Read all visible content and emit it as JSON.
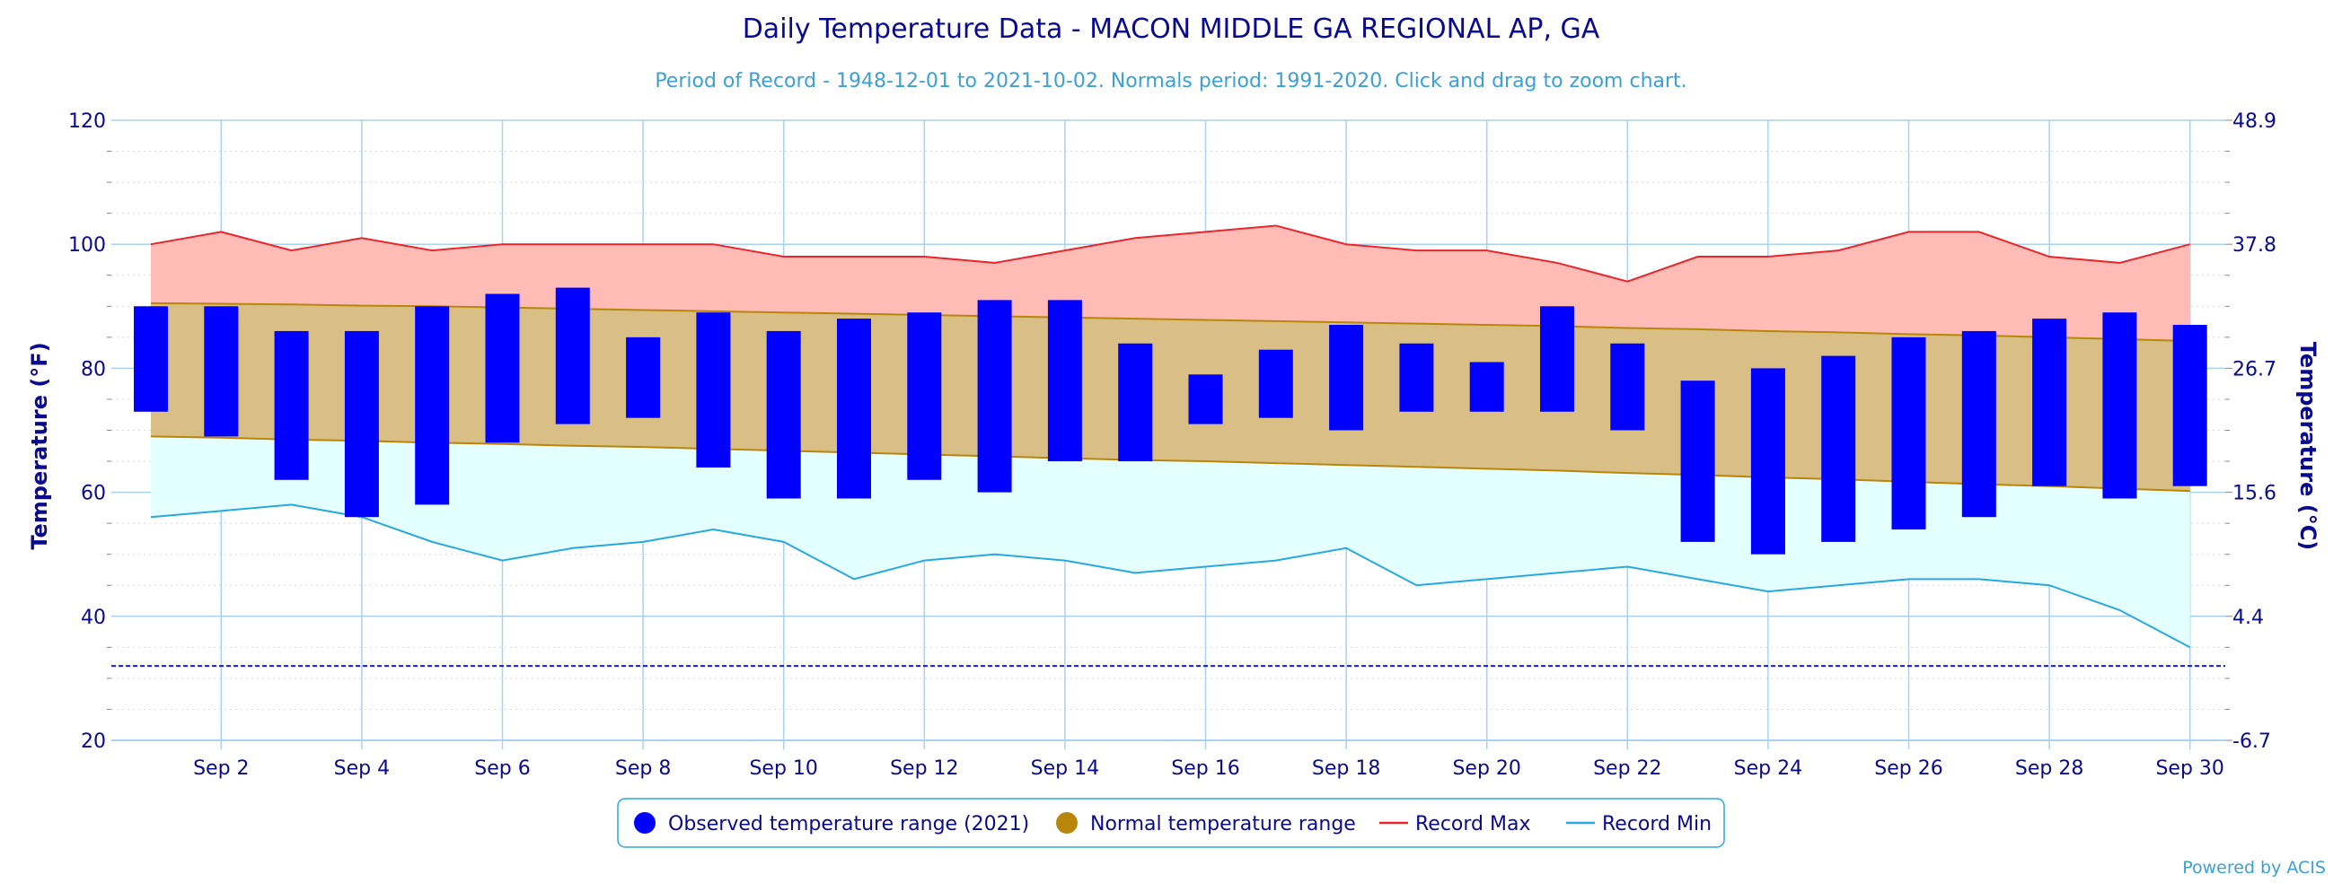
{
  "colors": {
    "observed": "#0000ff",
    "normal_fill": "#d9bf85",
    "normal_line": "#b8860b",
    "record_max_line": "#e8262b",
    "record_max_fill": "#ffbcb7",
    "record_min_line": "#29a8e0",
    "record_min_fill": "#e4ffff",
    "grid": "#a9d2f0",
    "freeze_line": "#1b1bd1",
    "text": "#0a0a8c",
    "subtitle": "#3aa0d8"
  },
  "chart_data": {
    "type": "bar",
    "title": "Daily Temperature Data - MACON MIDDLE GA REGIONAL AP, GA",
    "subtitle": "Period of Record - 1948-12-01 to 2021-10-02. Normals period: 1991-2020. Click and drag to zoom chart.",
    "ylabel_left": "Temperature (°F)",
    "ylabel_right": "Temperature (°C)",
    "ylim": [
      20,
      120
    ],
    "y_ticks": [
      "20",
      "40",
      "60",
      "80",
      "100",
      "120"
    ],
    "y_ticks_right": [
      "-6.7",
      "4.4",
      "15.6",
      "26.7",
      "37.8",
      "48.9"
    ],
    "x_tick_labels": [
      "Sep 2",
      "Sep 4",
      "Sep 6",
      "Sep 8",
      "Sep 10",
      "Sep 12",
      "Sep 14",
      "Sep 16",
      "Sep 18",
      "Sep 20",
      "Sep 22",
      "Sep 24",
      "Sep 26",
      "Sep 28",
      "Sep 30"
    ],
    "x_tick_days": [
      2,
      4,
      6,
      8,
      10,
      12,
      14,
      16,
      18,
      20,
      22,
      24,
      26,
      28,
      30
    ],
    "days": [
      1,
      2,
      3,
      4,
      5,
      6,
      7,
      8,
      9,
      10,
      11,
      12,
      13,
      14,
      15,
      16,
      17,
      18,
      19,
      20,
      21,
      22,
      23,
      24,
      25,
      26,
      27,
      28,
      29,
      30
    ],
    "observed_high": [
      90,
      90,
      86,
      86,
      90,
      92,
      93,
      85,
      89,
      86,
      88,
      89,
      91,
      91,
      84,
      79,
      83,
      87,
      84,
      81,
      90,
      84,
      78,
      80,
      82,
      85,
      86,
      88,
      89,
      87
    ],
    "observed_low": [
      73,
      69,
      62,
      56,
      58,
      68,
      71,
      72,
      64,
      59,
      59,
      62,
      60,
      65,
      65,
      71,
      72,
      70,
      73,
      73,
      73,
      70,
      52,
      50,
      52,
      54,
      56,
      61,
      59,
      61
    ],
    "normal_high": [
      90.5,
      90.4,
      90.3,
      90.1,
      90.0,
      89.8,
      89.6,
      89.4,
      89.2,
      89.0,
      88.8,
      88.6,
      88.4,
      88.2,
      88.0,
      87.8,
      87.6,
      87.4,
      87.2,
      87.0,
      86.8,
      86.5,
      86.3,
      86.0,
      85.8,
      85.5,
      85.3,
      85.0,
      84.7,
      84.4
    ],
    "normal_low": [
      69.0,
      68.8,
      68.5,
      68.3,
      68.0,
      67.8,
      67.5,
      67.3,
      67.0,
      66.7,
      66.4,
      66.1,
      65.8,
      65.5,
      65.2,
      65.0,
      64.7,
      64.4,
      64.1,
      63.8,
      63.5,
      63.1,
      62.8,
      62.4,
      62.1,
      61.7,
      61.3,
      61.0,
      60.6,
      60.2
    ],
    "record_max": [
      100,
      102,
      99,
      101,
      99,
      100,
      100,
      100,
      100,
      98,
      98,
      98,
      97,
      99,
      101,
      102,
      103,
      100,
      99,
      99,
      97,
      94,
      98,
      98,
      99,
      102,
      102,
      98,
      97,
      100
    ],
    "record_min": [
      56,
      57,
      58,
      56,
      52,
      49,
      51,
      52,
      54,
      52,
      46,
      49,
      50,
      49,
      47,
      48,
      49,
      51,
      45,
      46,
      47,
      48,
      46,
      44,
      45,
      46,
      46,
      45,
      41,
      35
    ],
    "freeze_line": 32,
    "legend": [
      {
        "label": "Observed temperature range (2021)",
        "marker": "circle",
        "color": "#0000ff"
      },
      {
        "label": "Normal temperature range",
        "marker": "circle",
        "color": "#b8860b"
      },
      {
        "label": "Record Max",
        "marker": "line",
        "color": "#e8262b"
      },
      {
        "label": "Record Min",
        "marker": "line",
        "color": "#29a8e0"
      }
    ],
    "legend_position": "bottom-center",
    "grid": true,
    "credits": "Powered by ACIS"
  }
}
